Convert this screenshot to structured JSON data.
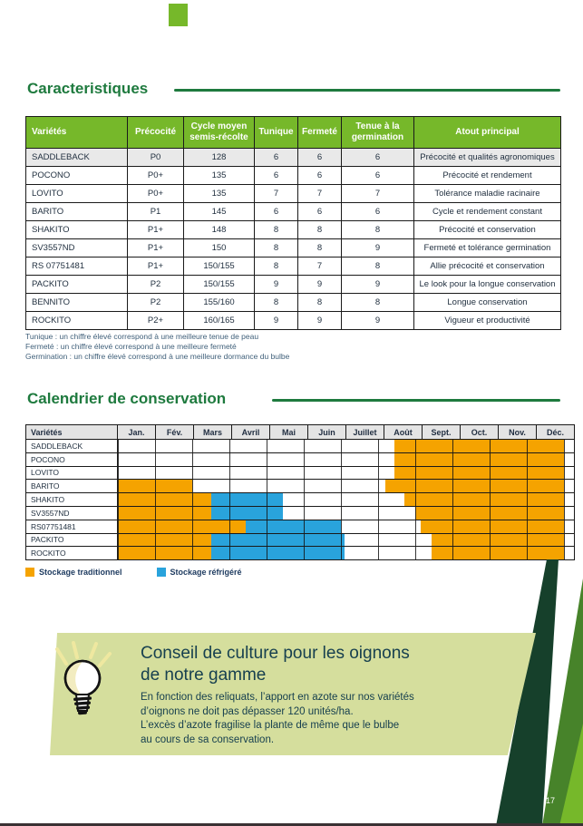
{
  "page": {
    "number": "17"
  },
  "colors": {
    "brand_green": "#76b82a",
    "title_green": "#1e7a3e",
    "orange": "#f5a300",
    "blue": "#29a3dc",
    "tip_background": "#d5de9d",
    "tip_text": "#17404f",
    "stripe_dark_green": "#16402b",
    "stripe_mid_green": "#47832a"
  },
  "sections": {
    "caracteristiques_title": "Caracteristiques",
    "calendrier_title": "Calendrier de conservation"
  },
  "characteristics_table": {
    "headers": [
      "Variétés",
      "Précocité",
      "Cycle moyen semis-récolte",
      "Tunique",
      "Fermeté",
      "Tenue à la germination",
      "Atout principal"
    ],
    "rows": [
      [
        "SADDLEBACK",
        "P0",
        "128",
        "6",
        "6",
        "6",
        "Précocité et qualités agronomiques"
      ],
      [
        "POCONO",
        "P0+",
        "135",
        "6",
        "6",
        "6",
        "Précocité et rendement"
      ],
      [
        "LOVITO",
        "P0+",
        "135",
        "7",
        "7",
        "7",
        "Tolérance maladie racinaire"
      ],
      [
        "BARITO",
        "P1",
        "145",
        "6",
        "6",
        "6",
        "Cycle et rendement constant"
      ],
      [
        "SHAKITO",
        "P1+",
        "148",
        "8",
        "8",
        "8",
        "Précocité et conservation"
      ],
      [
        "SV3557ND",
        "P1+",
        "150",
        "8",
        "8",
        "9",
        "Fermeté et tolérance germination"
      ],
      [
        "RS 07751481",
        "P1+",
        "150/155",
        "8",
        "7",
        "8",
        "Allie précocité et conservation"
      ],
      [
        "PACKITO",
        "P2",
        "150/155",
        "9",
        "9",
        "9",
        "Le look pour la longue conservation"
      ],
      [
        "BENNITO",
        "P2",
        "155/160",
        "8",
        "8",
        "8",
        "Longue conservation"
      ],
      [
        "ROCKITO",
        "P2+",
        "160/165",
        "9",
        "9",
        "9",
        "Vigueur et productivité"
      ]
    ],
    "footnotes": [
      "Tunique : un chiffre élevé correspond à une meilleure tenue de peau",
      "Fermeté : un chiffre élevé correspond à une meilleure fermeté",
      "Germination : un chiffre élevé correspond à une meilleure dormance du bulbe"
    ]
  },
  "calendar": {
    "variety_header": "Variétés",
    "months": [
      "Jan.",
      "Fév.",
      "Mars",
      "Avril",
      "Mai",
      "Juin",
      "Juillet",
      "Août",
      "Sept.",
      "Oct.",
      "Nov.",
      "Déc."
    ],
    "bar_colors": {
      "traditional": "#f5a300",
      "refrigerated": "#29a3dc"
    },
    "rows": [
      {
        "variety": "SADDLEBACK",
        "bars": [
          {
            "start": 7.45,
            "end": 12,
            "type": "traditional"
          }
        ]
      },
      {
        "variety": "POCONO",
        "bars": [
          {
            "start": 7.45,
            "end": 12,
            "type": "traditional"
          }
        ]
      },
      {
        "variety": "LOVITO",
        "bars": [
          {
            "start": 7.45,
            "end": 12,
            "type": "traditional"
          }
        ]
      },
      {
        "variety": "BARITO",
        "bars": [
          {
            "start": 0,
            "end": 2,
            "type": "traditional"
          },
          {
            "start": 7.2,
            "end": 12,
            "type": "traditional"
          }
        ]
      },
      {
        "variety": "SHAKITO",
        "bars": [
          {
            "start": 0,
            "end": 2.5,
            "type": "traditional"
          },
          {
            "start": 2.5,
            "end": 4.45,
            "type": "refrigerated"
          },
          {
            "start": 7.7,
            "end": 12,
            "type": "traditional"
          }
        ]
      },
      {
        "variety": "SV3557ND",
        "bars": [
          {
            "start": 0,
            "end": 2.5,
            "type": "traditional"
          },
          {
            "start": 2.5,
            "end": 4.45,
            "type": "refrigerated"
          },
          {
            "start": 8,
            "end": 12,
            "type": "traditional"
          }
        ]
      },
      {
        "variety": "RS07751481",
        "bars": [
          {
            "start": 0,
            "end": 3.45,
            "type": "traditional"
          },
          {
            "start": 3.45,
            "end": 6,
            "type": "refrigerated"
          },
          {
            "start": 8.15,
            "end": 12,
            "type": "traditional"
          }
        ]
      },
      {
        "variety": "PACKITO",
        "bars": [
          {
            "start": 0,
            "end": 2.5,
            "type": "traditional"
          },
          {
            "start": 2.5,
            "end": 6.1,
            "type": "refrigerated"
          },
          {
            "start": 8.45,
            "end": 12,
            "type": "traditional"
          }
        ]
      },
      {
        "variety": "ROCKITO",
        "bars": [
          {
            "start": 0,
            "end": 2.5,
            "type": "traditional"
          },
          {
            "start": 2.5,
            "end": 6.1,
            "type": "refrigerated"
          },
          {
            "start": 8.45,
            "end": 12,
            "type": "traditional"
          }
        ]
      }
    ],
    "legend": [
      {
        "label": "Stockage traditionnel",
        "type": "traditional"
      },
      {
        "label": "Stockage réfrigéré",
        "type": "refrigerated"
      }
    ]
  },
  "tip": {
    "heading_line1": "Conseil de culture pour les oignons",
    "heading_line2": "de notre gamme",
    "body_lines": [
      "En fonction des reliquats, l’apport en azote sur nos variétés",
      "d’oignons ne doit pas dépasser 120 unités/ha.",
      "L’excès d’azote fragilise la plante de même que le bulbe",
      "au cours de sa conservation."
    ]
  }
}
